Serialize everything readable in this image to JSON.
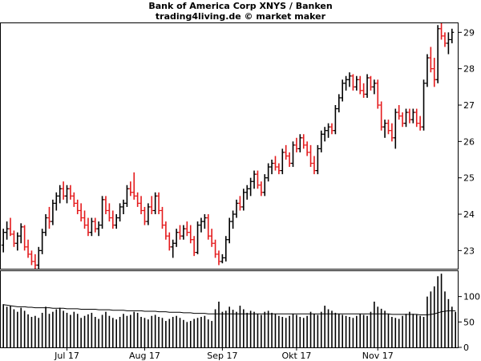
{
  "chart_data": {
    "type": "ohlc",
    "title": "Bank of America Corp XNYS / Banken",
    "subtitle": "trading4living.de © market maker",
    "price_axis": {
      "min": 22.5,
      "max": 29.25,
      "ticks": [
        23,
        24,
        25,
        26,
        27,
        28,
        29
      ]
    },
    "volume_axis": {
      "min": 0,
      "max": 150,
      "ticks": [
        0,
        50,
        100
      ]
    },
    "x_labels": [
      {
        "label": "Jul 17",
        "index": 18
      },
      {
        "label": "Aug 17",
        "index": 40
      },
      {
        "label": "Sep 17",
        "index": 62
      },
      {
        "label": "Okt 17",
        "index": 83
      },
      {
        "label": "Nov 17",
        "index": 106
      }
    ],
    "up_color": "#000000",
    "down_color": "#e41a1c",
    "ohlc": [
      [
        23.15,
        23.6,
        22.95,
        23.5
      ],
      [
        23.5,
        23.8,
        23.3,
        23.6
      ],
      [
        23.6,
        23.9,
        23.4,
        23.45
      ],
      [
        23.45,
        23.55,
        23.1,
        23.2
      ],
      [
        23.2,
        23.5,
        23.0,
        23.4
      ],
      [
        23.4,
        23.75,
        23.2,
        23.65
      ],
      [
        23.65,
        23.7,
        23.0,
        23.1
      ],
      [
        23.1,
        23.3,
        22.8,
        22.9
      ],
      [
        22.9,
        23.0,
        22.6,
        22.7
      ],
      [
        22.7,
        22.9,
        22.5,
        22.6
      ],
      [
        22.6,
        23.1,
        22.5,
        23.0
      ],
      [
        23.0,
        23.6,
        22.9,
        23.5
      ],
      [
        23.5,
        24.0,
        23.4,
        23.9
      ],
      [
        23.9,
        24.2,
        23.6,
        23.8
      ],
      [
        23.8,
        24.4,
        23.7,
        24.3
      ],
      [
        24.3,
        24.6,
        24.1,
        24.5
      ],
      [
        24.5,
        24.8,
        24.3,
        24.7
      ],
      [
        24.7,
        24.9,
        24.4,
        24.5
      ],
      [
        24.5,
        24.8,
        24.3,
        24.7
      ],
      [
        24.7,
        24.8,
        24.4,
        24.5
      ],
      [
        24.5,
        24.6,
        24.2,
        24.3
      ],
      [
        24.3,
        24.4,
        24.0,
        24.1
      ],
      [
        24.1,
        24.3,
        23.8,
        23.9
      ],
      [
        23.9,
        24.1,
        23.6,
        23.7
      ],
      [
        23.7,
        23.9,
        23.4,
        23.5
      ],
      [
        23.5,
        23.9,
        23.4,
        23.8
      ],
      [
        23.8,
        23.9,
        23.5,
        23.6
      ],
      [
        23.6,
        23.8,
        23.4,
        23.7
      ],
      [
        23.7,
        24.5,
        23.6,
        24.4
      ],
      [
        24.4,
        24.5,
        24.0,
        24.1
      ],
      [
        24.1,
        24.3,
        23.8,
        23.9
      ],
      [
        23.9,
        24.1,
        23.6,
        23.7
      ],
      [
        23.7,
        24.0,
        23.6,
        23.9
      ],
      [
        23.9,
        24.3,
        23.8,
        24.2
      ],
      [
        24.2,
        24.4,
        24.0,
        24.3
      ],
      [
        24.3,
        24.8,
        24.2,
        24.7
      ],
      [
        24.7,
        24.9,
        24.5,
        24.6
      ],
      [
        24.6,
        25.15,
        24.4,
        24.5
      ],
      [
        24.5,
        24.6,
        24.2,
        24.3
      ],
      [
        24.3,
        24.5,
        24.0,
        24.1
      ],
      [
        24.1,
        24.2,
        23.7,
        23.8
      ],
      [
        23.8,
        24.3,
        23.7,
        24.2
      ],
      [
        24.2,
        24.5,
        24.0,
        24.1
      ],
      [
        24.1,
        24.6,
        24.0,
        24.5
      ],
      [
        24.5,
        24.6,
        24.0,
        24.1
      ],
      [
        24.1,
        24.2,
        23.6,
        23.7
      ],
      [
        23.7,
        23.8,
        23.3,
        23.4
      ],
      [
        23.4,
        23.5,
        23.0,
        23.1
      ],
      [
        23.1,
        23.3,
        22.8,
        23.2
      ],
      [
        23.2,
        23.6,
        23.1,
        23.5
      ],
      [
        23.5,
        23.7,
        23.3,
        23.4
      ],
      [
        23.4,
        23.7,
        23.3,
        23.6
      ],
      [
        23.6,
        23.8,
        23.4,
        23.5
      ],
      [
        23.5,
        23.7,
        23.2,
        23.3
      ],
      [
        23.3,
        23.4,
        22.85,
        22.95
      ],
      [
        22.95,
        23.8,
        22.9,
        23.7
      ],
      [
        23.7,
        23.9,
        23.5,
        23.8
      ],
      [
        23.8,
        24.0,
        23.6,
        23.9
      ],
      [
        23.9,
        24.0,
        23.3,
        23.4
      ],
      [
        23.4,
        23.6,
        23.1,
        23.2
      ],
      [
        23.2,
        23.3,
        22.8,
        22.9
      ],
      [
        22.9,
        23.0,
        22.6,
        22.7
      ],
      [
        22.7,
        22.9,
        22.65,
        22.8
      ],
      [
        22.8,
        23.4,
        22.7,
        23.3
      ],
      [
        23.3,
        23.9,
        23.2,
        23.8
      ],
      [
        23.8,
        24.1,
        23.6,
        24.0
      ],
      [
        24.0,
        24.4,
        23.9,
        24.3
      ],
      [
        24.3,
        24.5,
        24.1,
        24.2
      ],
      [
        24.2,
        24.7,
        24.1,
        24.6
      ],
      [
        24.6,
        24.8,
        24.4,
        24.7
      ],
      [
        24.7,
        25.0,
        24.5,
        24.9
      ],
      [
        24.9,
        25.2,
        24.7,
        25.1
      ],
      [
        25.1,
        25.2,
        24.7,
        24.8
      ],
      [
        24.8,
        24.9,
        24.5,
        24.6
      ],
      [
        24.6,
        25.1,
        24.5,
        25.0
      ],
      [
        25.0,
        25.4,
        24.9,
        25.3
      ],
      [
        25.3,
        25.5,
        25.1,
        25.4
      ],
      [
        25.4,
        25.6,
        25.2,
        25.3
      ],
      [
        25.3,
        25.4,
        25.1,
        25.2
      ],
      [
        25.2,
        25.8,
        25.1,
        25.7
      ],
      [
        25.7,
        25.9,
        25.5,
        25.6
      ],
      [
        25.6,
        25.7,
        25.3,
        25.4
      ],
      [
        25.4,
        26.0,
        25.3,
        25.9
      ],
      [
        25.9,
        26.1,
        25.7,
        25.8
      ],
      [
        25.8,
        26.2,
        25.7,
        26.1
      ],
      [
        26.1,
        26.2,
        25.8,
        25.9
      ],
      [
        25.9,
        26.0,
        25.6,
        25.7
      ],
      [
        25.7,
        25.9,
        25.3,
        25.4
      ],
      [
        25.4,
        25.6,
        25.1,
        25.2
      ],
      [
        25.2,
        25.9,
        25.1,
        25.8
      ],
      [
        25.8,
        26.3,
        25.7,
        26.2
      ],
      [
        26.2,
        26.4,
        26.0,
        26.3
      ],
      [
        26.3,
        26.5,
        26.1,
        26.4
      ],
      [
        26.4,
        26.5,
        26.2,
        26.3
      ],
      [
        26.3,
        27.0,
        26.2,
        26.9
      ],
      [
        26.9,
        27.3,
        26.8,
        27.2
      ],
      [
        27.2,
        27.7,
        27.1,
        27.6
      ],
      [
        27.6,
        27.8,
        27.4,
        27.7
      ],
      [
        27.7,
        27.9,
        27.5,
        27.8
      ],
      [
        27.8,
        27.85,
        27.4,
        27.5
      ],
      [
        27.5,
        27.8,
        27.4,
        27.7
      ],
      [
        27.7,
        27.8,
        27.3,
        27.4
      ],
      [
        27.4,
        27.6,
        27.2,
        27.3
      ],
      [
        27.3,
        27.85,
        27.2,
        27.75
      ],
      [
        27.75,
        27.8,
        27.4,
        27.5
      ],
      [
        27.5,
        27.7,
        27.3,
        27.6
      ],
      [
        27.6,
        27.7,
        26.9,
        27.0
      ],
      [
        27.0,
        27.1,
        26.3,
        26.4
      ],
      [
        26.4,
        26.6,
        26.1,
        26.5
      ],
      [
        26.5,
        26.6,
        26.2,
        26.3
      ],
      [
        26.3,
        26.5,
        26.0,
        26.1
      ],
      [
        26.1,
        26.9,
        25.8,
        26.8
      ],
      [
        26.8,
        27.0,
        26.6,
        26.7
      ],
      [
        26.7,
        26.8,
        26.4,
        26.5
      ],
      [
        26.5,
        26.9,
        26.4,
        26.8
      ],
      [
        26.8,
        26.9,
        26.5,
        26.6
      ],
      [
        26.6,
        26.9,
        26.5,
        26.8
      ],
      [
        26.8,
        26.9,
        26.4,
        26.5
      ],
      [
        26.5,
        26.7,
        26.3,
        26.4
      ],
      [
        26.4,
        27.7,
        26.3,
        27.6
      ],
      [
        27.6,
        28.4,
        27.5,
        28.3
      ],
      [
        28.3,
        28.6,
        27.9,
        28.0
      ],
      [
        28.0,
        28.3,
        27.5,
        27.7
      ],
      [
        27.7,
        29.2,
        27.6,
        29.1
      ],
      [
        29.1,
        29.25,
        28.8,
        28.9
      ],
      [
        28.9,
        29.0,
        28.6,
        28.7
      ],
      [
        28.7,
        29.0,
        28.4,
        28.8
      ],
      [
        28.8,
        29.1,
        28.7,
        29.0
      ]
    ],
    "volume": [
      85,
      80,
      82,
      75,
      70,
      78,
      72,
      65,
      60,
      62,
      58,
      68,
      80,
      66,
      70,
      75,
      78,
      72,
      68,
      64,
      70,
      66,
      58,
      62,
      65,
      68,
      60,
      56,
      64,
      70,
      62,
      58,
      55,
      60,
      66,
      62,
      64,
      70,
      68,
      60,
      58,
      55,
      62,
      64,
      60,
      58,
      52,
      56,
      60,
      62,
      58,
      54,
      50,
      52,
      56,
      58,
      60,
      62,
      55,
      52,
      75,
      90,
      70,
      72,
      80,
      74,
      70,
      82,
      75,
      68,
      72,
      70,
      66,
      64,
      70,
      72,
      68,
      66,
      62,
      60,
      58,
      62,
      66,
      64,
      60,
      58,
      62,
      70,
      66,
      64,
      70,
      82,
      75,
      72,
      68,
      66,
      64,
      62,
      60,
      58,
      62,
      66,
      64,
      62,
      70,
      90,
      80,
      76,
      72,
      66,
      60,
      58,
      56,
      62,
      66,
      70,
      66,
      64,
      62,
      60,
      100,
      110,
      120,
      140,
      145,
      110,
      95,
      80,
      70
    ],
    "volume_ma": [
      84,
      83,
      82,
      81,
      80,
      80,
      80,
      79,
      79,
      78,
      78,
      78,
      78,
      78,
      77,
      77,
      77,
      77,
      76,
      76,
      76,
      76,
      75,
      75,
      75,
      75,
      75,
      74,
      74,
      74,
      74,
      73,
      73,
      73,
      73,
      72,
      72,
      72,
      72,
      72,
      71,
      71,
      71,
      71,
      70,
      70,
      70,
      69,
      69,
      69,
      69,
      68,
      68,
      68,
      67,
      67,
      67,
      67,
      66,
      66,
      66,
      66,
      66,
      66,
      66,
      66,
      66,
      66,
      66,
      66,
      66,
      66,
      66,
      66,
      66,
      66,
      66,
      66,
      66,
      66,
      66,
      66,
      66,
      66,
      66,
      66,
      66,
      66,
      66,
      66,
      66,
      66,
      66,
      66,
      66,
      66,
      66,
      66,
      66,
      66,
      66,
      66,
      66,
      66,
      66,
      66,
      66,
      66,
      66,
      66,
      65,
      65,
      65,
      65,
      65,
      65,
      65,
      65,
      64,
      64,
      64,
      65,
      66,
      68,
      70,
      71,
      72,
      72,
      72
    ]
  }
}
